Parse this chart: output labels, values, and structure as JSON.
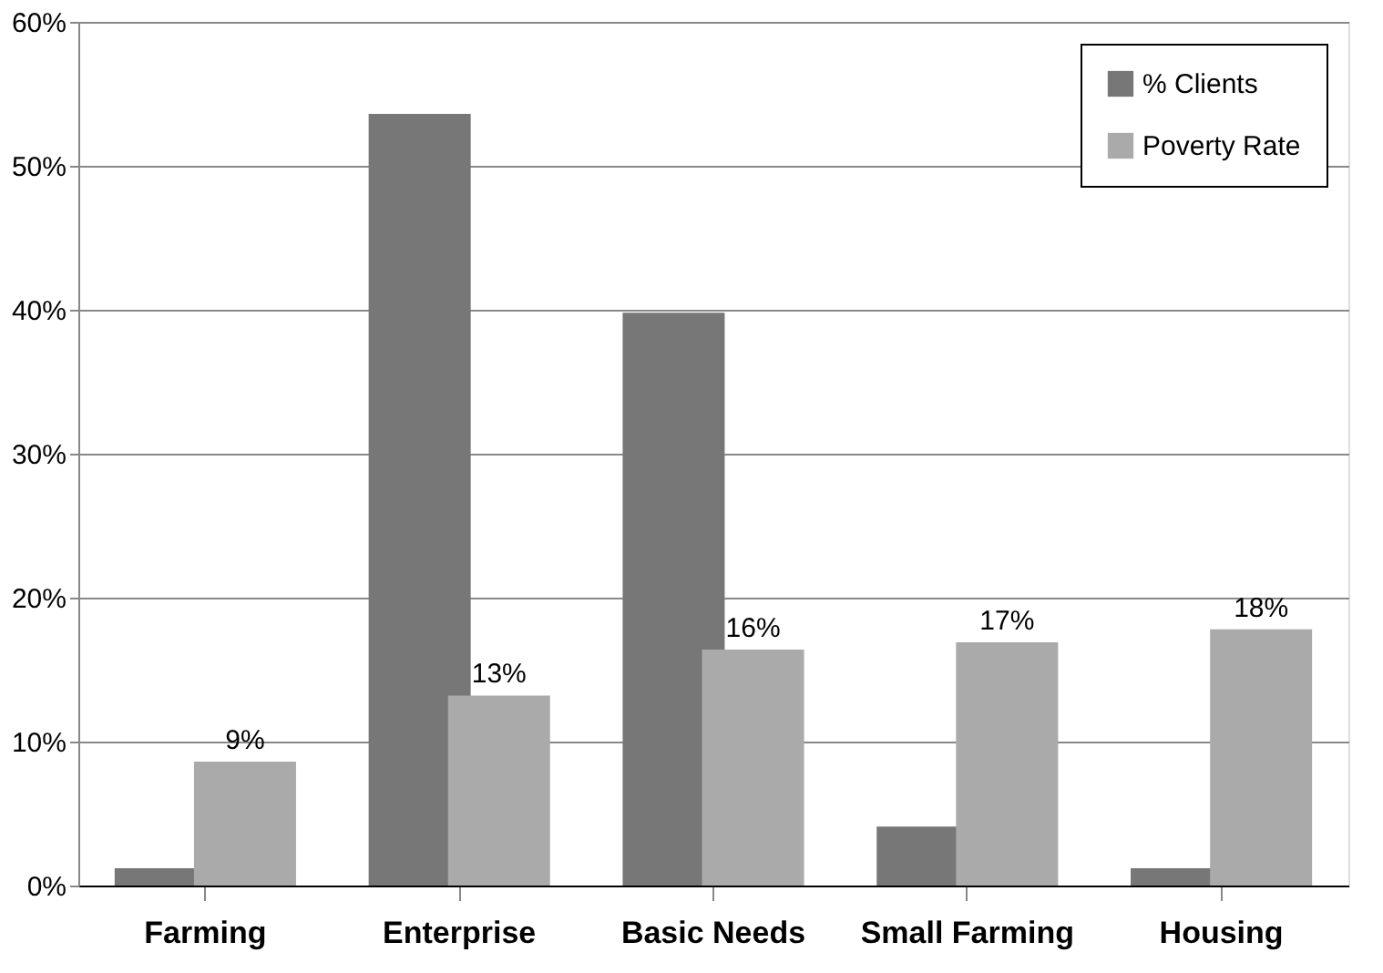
{
  "chart_data": {
    "type": "bar",
    "categories": [
      "Farming",
      "Enterprise",
      "Basic Needs",
      "Small Farming",
      "Housing"
    ],
    "series": [
      {
        "name": "% Clients",
        "color": "#777777",
        "values": [
          1.2,
          53.6,
          39.8,
          4.1,
          1.2
        ]
      },
      {
        "name": "Poverty Rate",
        "color": "#aaaaaa",
        "values": [
          8.6,
          13.2,
          16.4,
          16.9,
          17.8
        ],
        "value_labels": [
          "9%",
          "13%",
          "16%",
          "17%",
          "18%"
        ]
      }
    ],
    "ylim": [
      0,
      60
    ],
    "yticks": [
      {
        "value": 0,
        "label": "0%"
      },
      {
        "value": 10,
        "label": "10%"
      },
      {
        "value": 20,
        "label": "20%"
      },
      {
        "value": 30,
        "label": "30%"
      },
      {
        "value": 40,
        "label": "40%"
      },
      {
        "value": 50,
        "label": "50%"
      },
      {
        "value": 60,
        "label": "60%"
      }
    ],
    "grid": "y",
    "legend": "top right"
  }
}
